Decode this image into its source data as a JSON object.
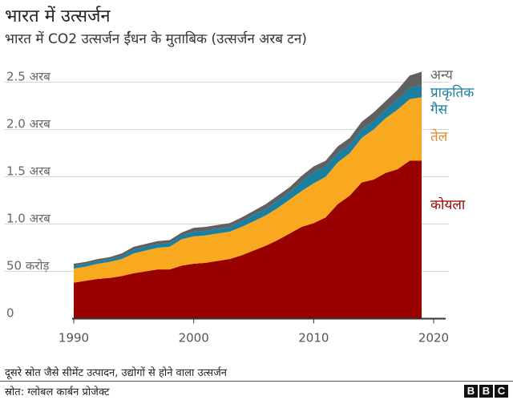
{
  "header": {
    "title": "भारत में उत्सर्जन",
    "subtitle": "भारत में CO2 उत्सर्जन ईंधन के मुताबिक (उत्सर्जन अरब टन)"
  },
  "footer": {
    "note": "दूसरे स्रोत जैसे सीमेंट उत्पादन, उद्योगों से होने वाला उत्सर्जन",
    "source": "स्रोत: ग्लोबल कार्बन प्रोजेक्ट",
    "logo": "BBC"
  },
  "chart_data": {
    "type": "area",
    "stacked": true,
    "title": "भारत में CO2 उत्सर्जन ईंधन के मुताबिक (उत्सर्जन अरब टन)",
    "x": [
      1990,
      1991,
      1992,
      1993,
      1994,
      1995,
      1996,
      1997,
      1998,
      1999,
      2000,
      2001,
      2002,
      2003,
      2004,
      2005,
      2006,
      2007,
      2008,
      2009,
      2010,
      2011,
      2012,
      2013,
      2014,
      2015,
      2016,
      2017,
      2018,
      2019
    ],
    "series": [
      {
        "name": "कोयला",
        "color": "#990000",
        "values": [
          0.38,
          0.4,
          0.42,
          0.43,
          0.45,
          0.48,
          0.5,
          0.52,
          0.52,
          0.56,
          0.58,
          0.59,
          0.61,
          0.63,
          0.67,
          0.72,
          0.77,
          0.83,
          0.9,
          0.97,
          1.01,
          1.07,
          1.21,
          1.3,
          1.44,
          1.47,
          1.54,
          1.58,
          1.67,
          1.67
        ]
      },
      {
        "name": "तेल",
        "color": "#f9a91f",
        "values": [
          0.15,
          0.15,
          0.16,
          0.17,
          0.18,
          0.21,
          0.22,
          0.23,
          0.24,
          0.28,
          0.29,
          0.29,
          0.29,
          0.29,
          0.3,
          0.31,
          0.32,
          0.34,
          0.36,
          0.38,
          0.42,
          0.43,
          0.44,
          0.45,
          0.47,
          0.53,
          0.58,
          0.63,
          0.65,
          0.67
        ]
      },
      {
        "name": "प्राकृतिक गैस",
        "color": "#1b7fa1",
        "values": [
          0.03,
          0.03,
          0.03,
          0.03,
          0.03,
          0.04,
          0.04,
          0.04,
          0.04,
          0.04,
          0.05,
          0.05,
          0.05,
          0.05,
          0.06,
          0.07,
          0.07,
          0.08,
          0.08,
          0.1,
          0.12,
          0.11,
          0.1,
          0.09,
          0.09,
          0.09,
          0.09,
          0.11,
          0.12,
          0.13
        ]
      },
      {
        "name": "अन्य",
        "color": "#606060",
        "values": [
          0.02,
          0.02,
          0.02,
          0.02,
          0.03,
          0.03,
          0.03,
          0.03,
          0.03,
          0.03,
          0.04,
          0.04,
          0.04,
          0.04,
          0.04,
          0.04,
          0.05,
          0.05,
          0.05,
          0.06,
          0.06,
          0.06,
          0.07,
          0.07,
          0.08,
          0.09,
          0.09,
          0.1,
          0.13,
          0.14
        ]
      }
    ],
    "legend_labels": {
      "other": "अन्य",
      "gas_line1": "प्राकृतिक",
      "gas_line2": "गैस",
      "oil": "तेल",
      "coal": "कोयला"
    },
    "legend_colors": {
      "other": "#666666",
      "gas": "#1b7fa1",
      "oil": "#e08a2c",
      "coal": "#990000"
    },
    "xlim": [
      1990,
      2020
    ],
    "ylim": [
      0,
      2.5
    ],
    "x_ticks": [
      1990,
      2000,
      2010,
      2020
    ],
    "x_tick_labels": [
      "1990",
      "2000",
      "2010",
      "2020"
    ],
    "y_ticks": [
      0,
      0.5,
      1.0,
      1.5,
      2.0,
      2.5
    ],
    "y_tick_labels": [
      "0",
      "50 करोड़",
      "1.0 अरब",
      "1.5 अरब",
      "2.0 अरब",
      "2.5 अरब"
    ],
    "grid": true,
    "legend": "right"
  }
}
